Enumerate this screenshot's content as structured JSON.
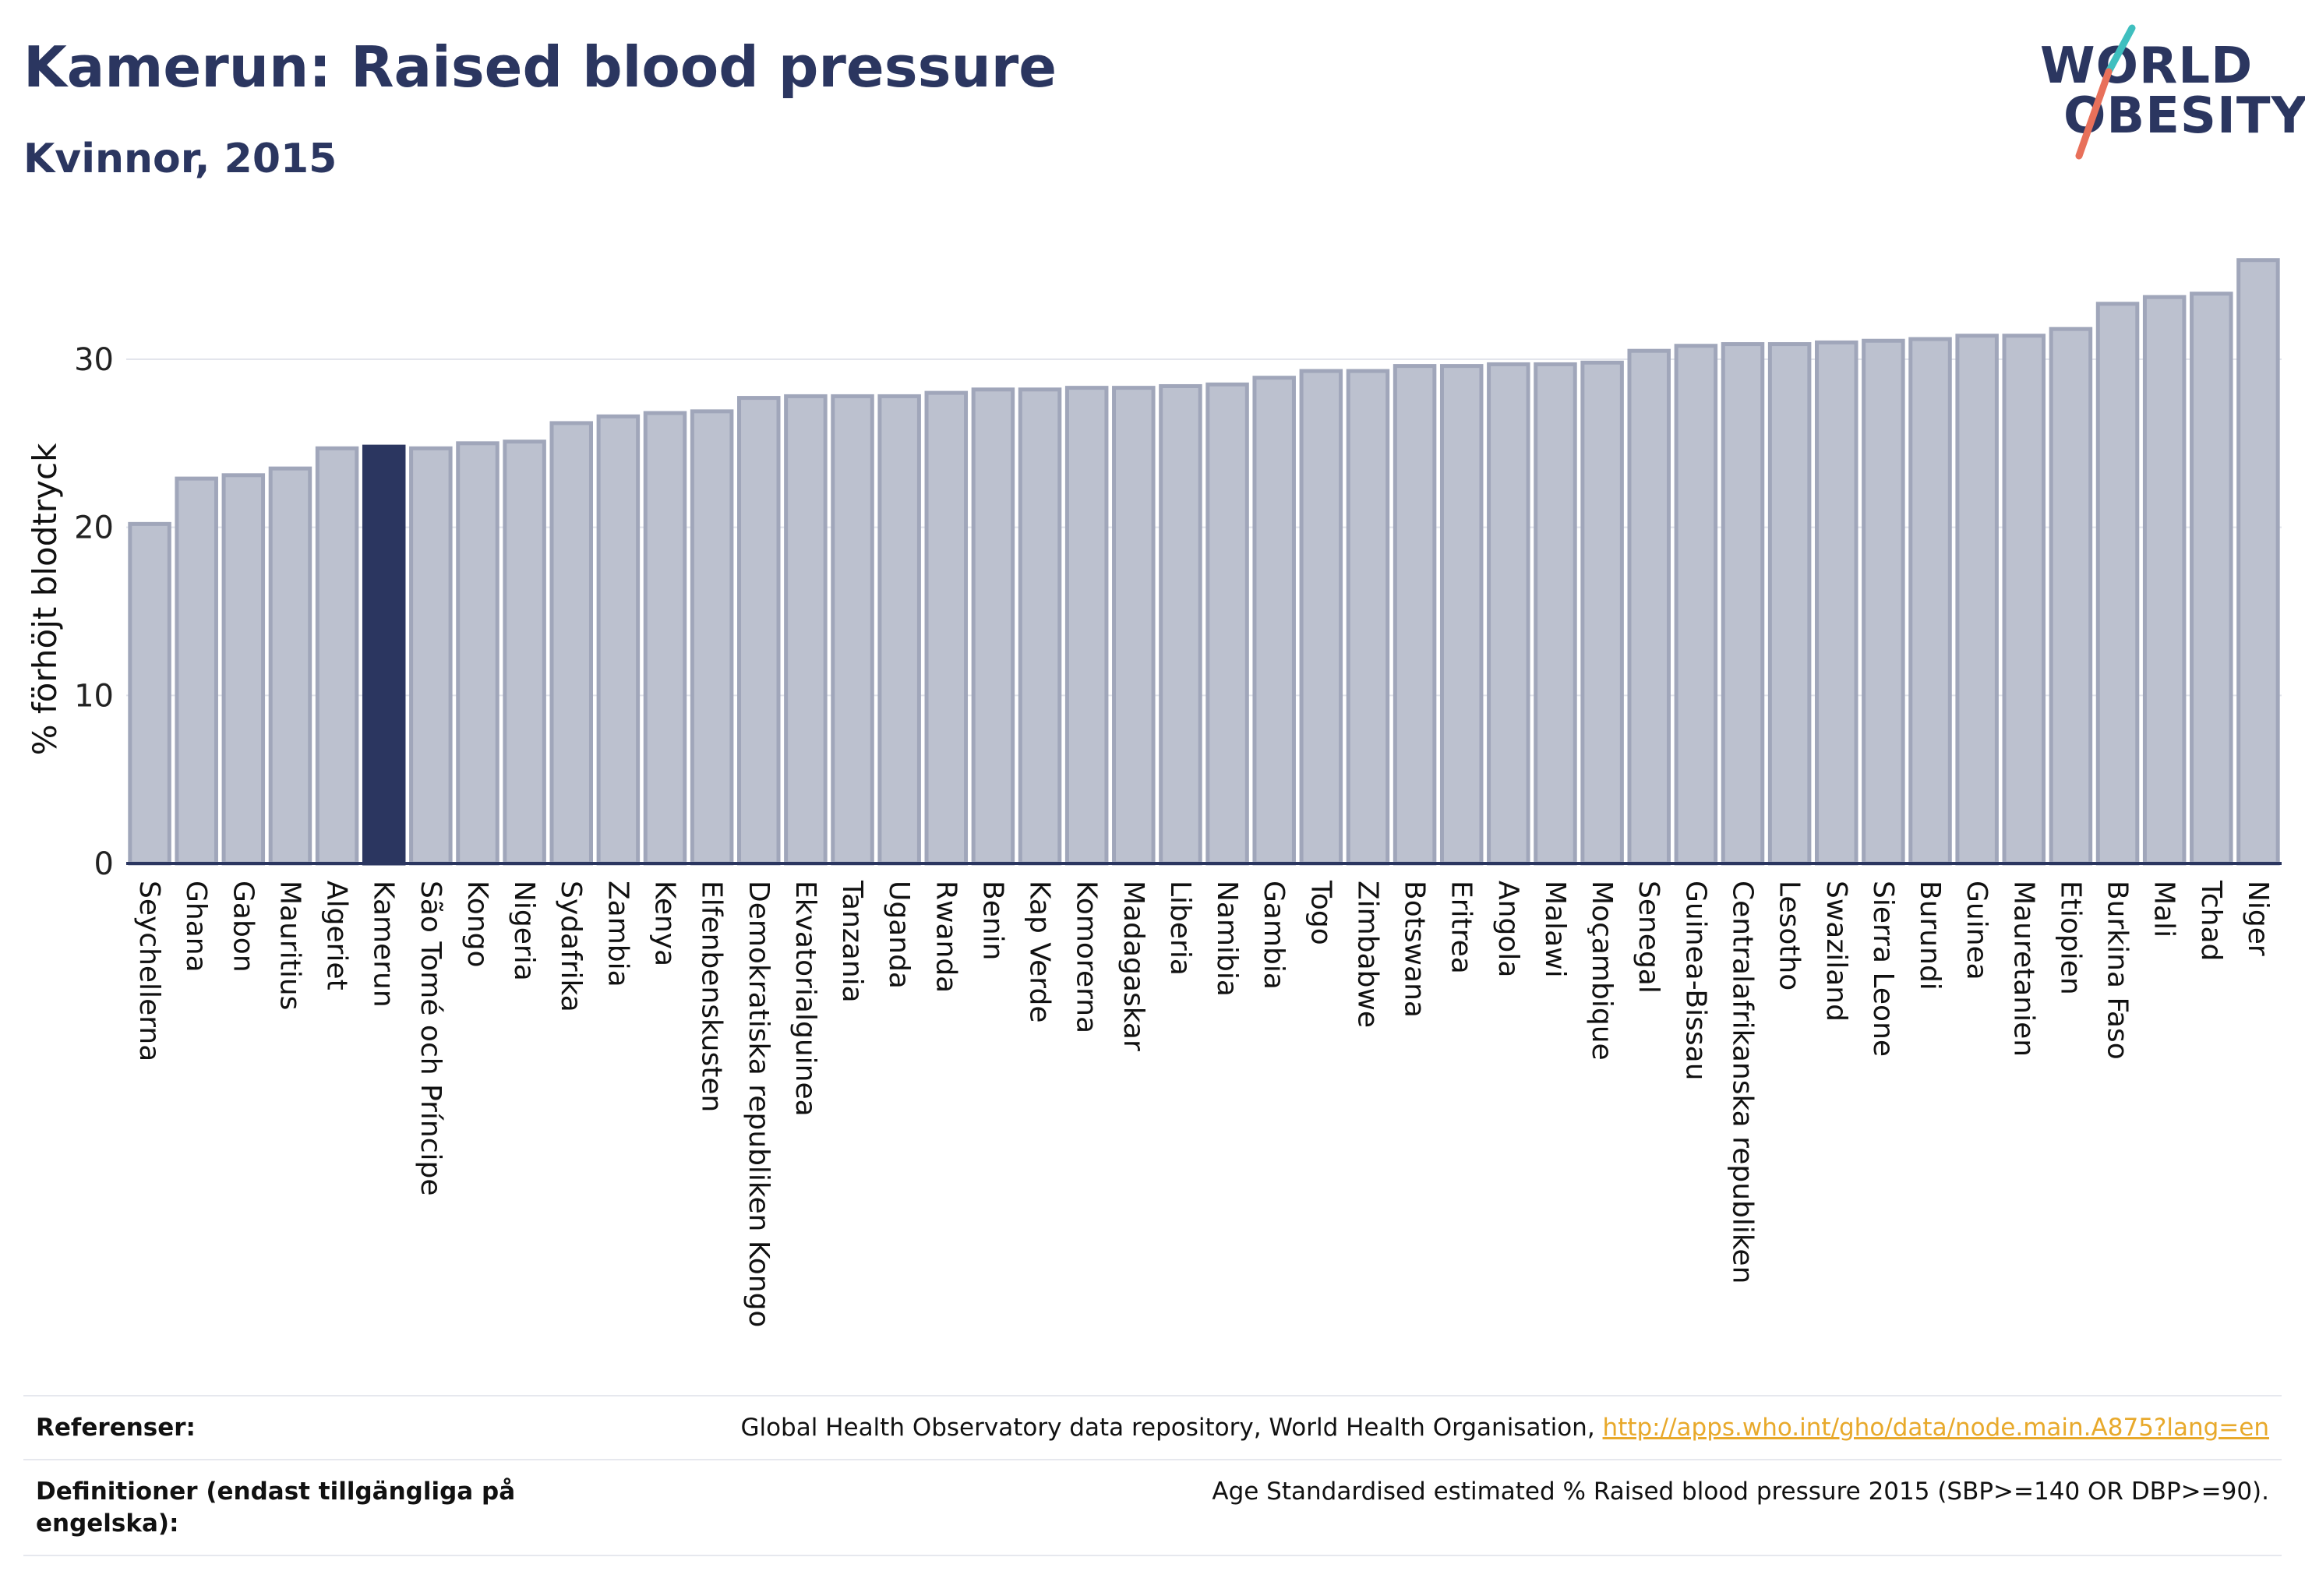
{
  "header": {
    "title": "Kamerun: Raised blood pressure",
    "subtitle": "Kvinnor, 2015"
  },
  "logo": {
    "line1": "WORLD",
    "line2": "OBESITY"
  },
  "colors": {
    "bar": "#bcc1cf",
    "bar_border": "#a0a6ba",
    "highlight": "#2b3660",
    "text": "#2b3660",
    "link": "#e8a92b",
    "logo_slash_top": "#3fbfbf",
    "logo_slash_bottom": "#e8705a"
  },
  "chart_data": {
    "type": "bar",
    "ylabel": "% förhöjt blodtryck",
    "xlabel": "",
    "ylim": [
      0,
      37
    ],
    "yticks": [
      0,
      10,
      20,
      30
    ],
    "grid": true,
    "highlight": "Kamerun",
    "categories": [
      "Seychellerna",
      "Ghana",
      "Gabon",
      "Mauritius",
      "Algeriet",
      "Kamerun",
      "São Tomé och Príncipe",
      "Kongo",
      "Nigeria",
      "Sydafrika",
      "Zambia",
      "Kenya",
      "Elfenbenskusten",
      "Demokratiska republiken Kongo",
      "Ekvatorialguinea",
      "Tanzania",
      "Uganda",
      "Rwanda",
      "Benin",
      "Kap Verde",
      "Komorerna",
      "Madagaskar",
      "Liberia",
      "Namibia",
      "Gambia",
      "Togo",
      "Zimbabwe",
      "Botswana",
      "Eritrea",
      "Angola",
      "Malawi",
      "Moçambique",
      "Senegal",
      "Guinea-Bissau",
      "Centralafrikanska republiken",
      "Lesotho",
      "Swaziland",
      "Sierra Leone",
      "Burundi",
      "Guinea",
      "Mauretanien",
      "Etiopien",
      "Burkina Faso",
      "Mali",
      "Tchad",
      "Niger"
    ],
    "values": [
      20.2,
      22.9,
      23.1,
      23.5,
      24.7,
      24.8,
      24.7,
      25.0,
      25.1,
      26.2,
      26.6,
      26.8,
      26.9,
      27.7,
      27.8,
      27.8,
      27.8,
      28.0,
      28.2,
      28.2,
      28.3,
      28.3,
      28.4,
      28.5,
      28.9,
      29.3,
      29.3,
      29.6,
      29.6,
      29.7,
      29.7,
      29.8,
      30.5,
      30.8,
      30.9,
      30.9,
      31.0,
      31.1,
      31.2,
      31.4,
      31.4,
      31.8,
      33.3,
      33.7,
      33.9,
      35.9
    ]
  },
  "references": [
    {
      "label": "Referenser:",
      "text": "Global Health Observatory data repository, World Health Organisation, ",
      "link": "http://apps.who.int/gho/data/node.main.A875?lang=en"
    },
    {
      "label": "Definitioner (endast tillgängliga på engelska):",
      "text": "Age Standardised estimated % Raised blood pressure 2015 (SBP>=140 OR DBP>=90).",
      "link": ""
    }
  ]
}
